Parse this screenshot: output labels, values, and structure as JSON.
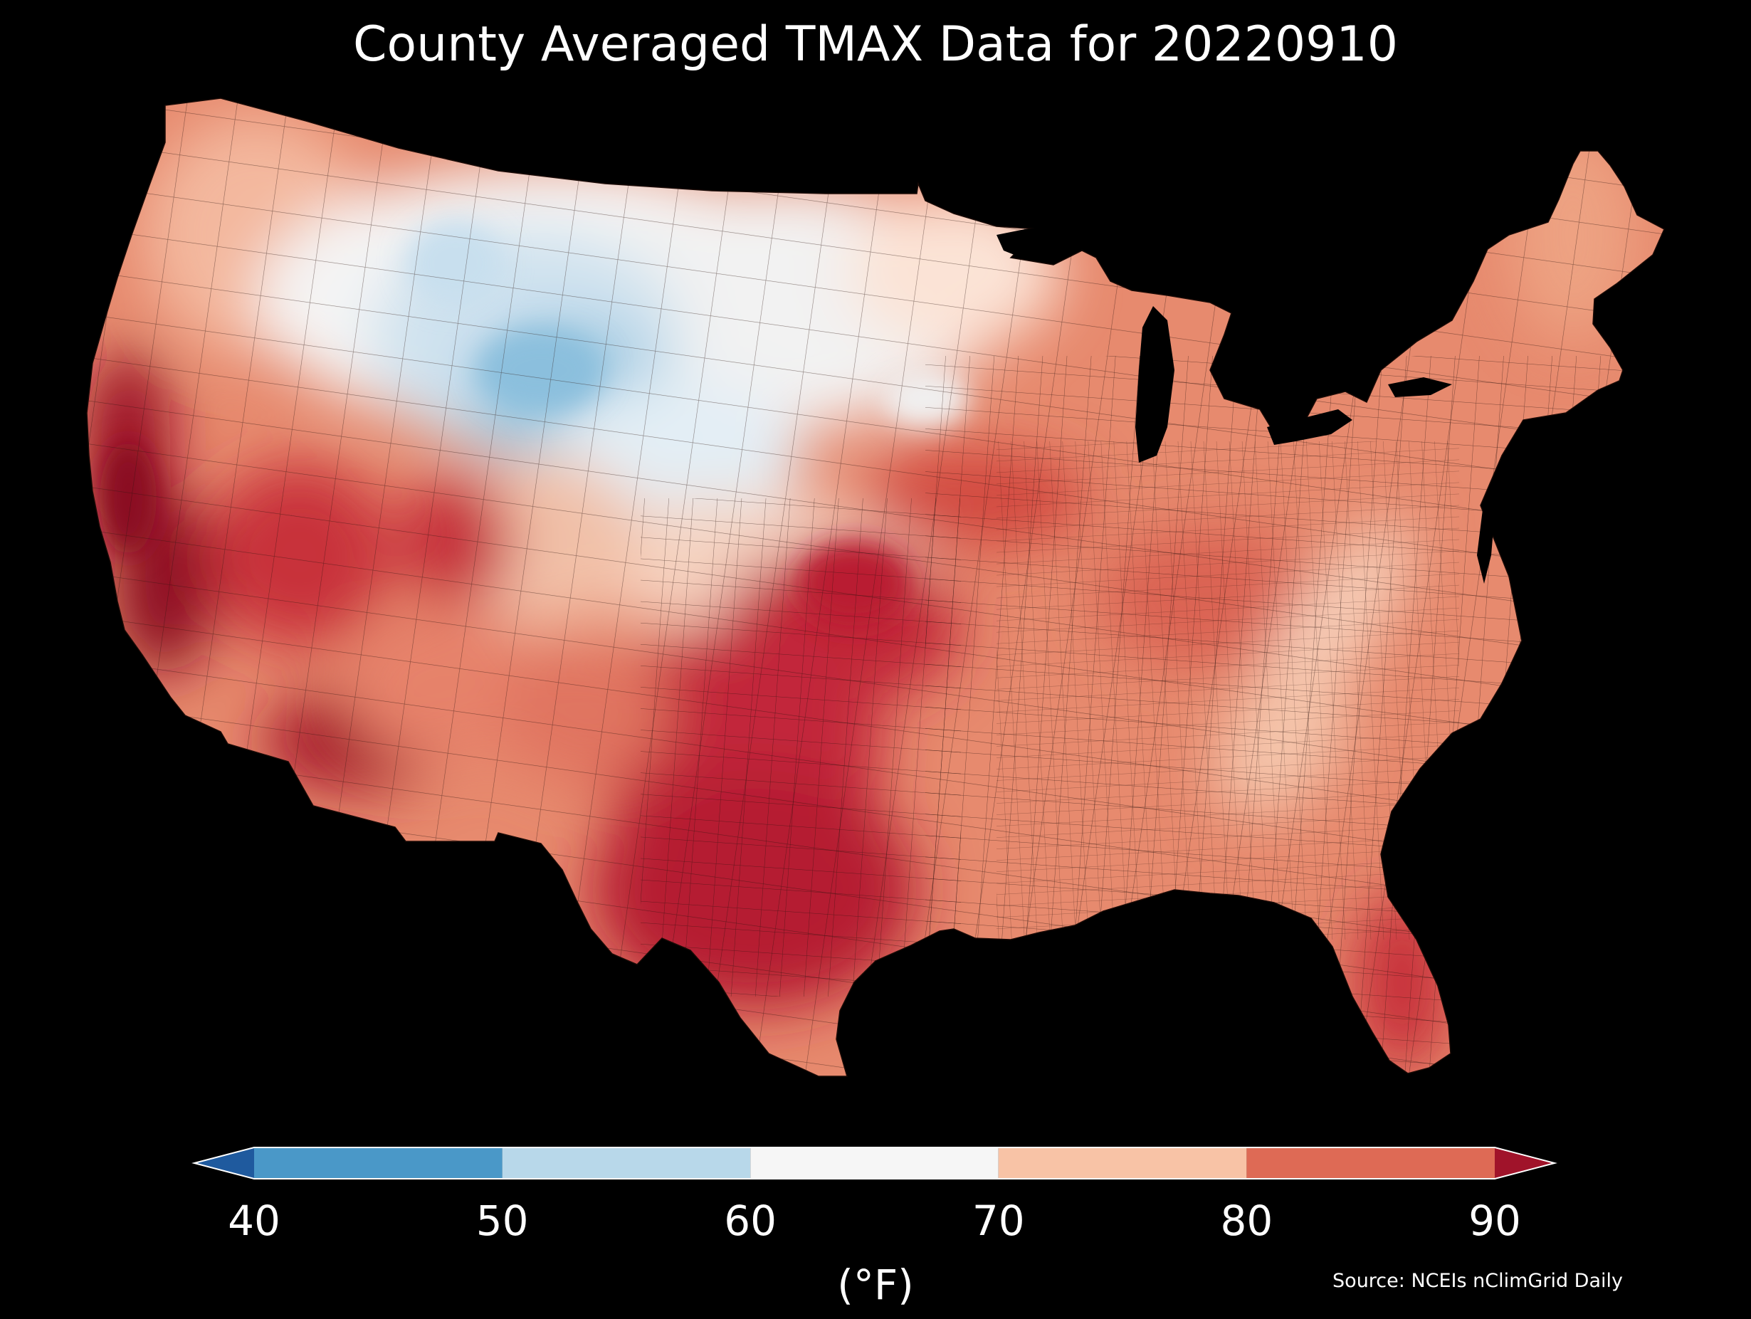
{
  "title": "County Averaged TMAX Data for 20220910",
  "source": "Source: NCEIs nClimGrid Daily",
  "colorbar": {
    "unit_label": "(°F)",
    "ticks": [
      "40",
      "50",
      "60",
      "70",
      "80",
      "90"
    ],
    "tick_values": [
      40,
      50,
      60,
      70,
      80,
      90
    ],
    "extend": "both",
    "bins": [
      {
        "range": "<40",
        "color": "#1f5a9e"
      },
      {
        "range": "40-50",
        "color": "#4a98c8"
      },
      {
        "range": "50-60",
        "color": "#b8d8ea"
      },
      {
        "range": "60-70",
        "color": "#f6f6f6"
      },
      {
        "range": "70-80",
        "color": "#f8c3a6"
      },
      {
        "range": "80-90",
        "color": "#de6a55"
      },
      {
        "range": ">90",
        "color": "#a0132a"
      }
    ]
  },
  "map": {
    "region": "Contiguous United States",
    "variable": "TMAX",
    "units": "°F",
    "date": "20220910",
    "background_color": "#000000",
    "county_boundary_color": "#3a1a10"
  }
}
